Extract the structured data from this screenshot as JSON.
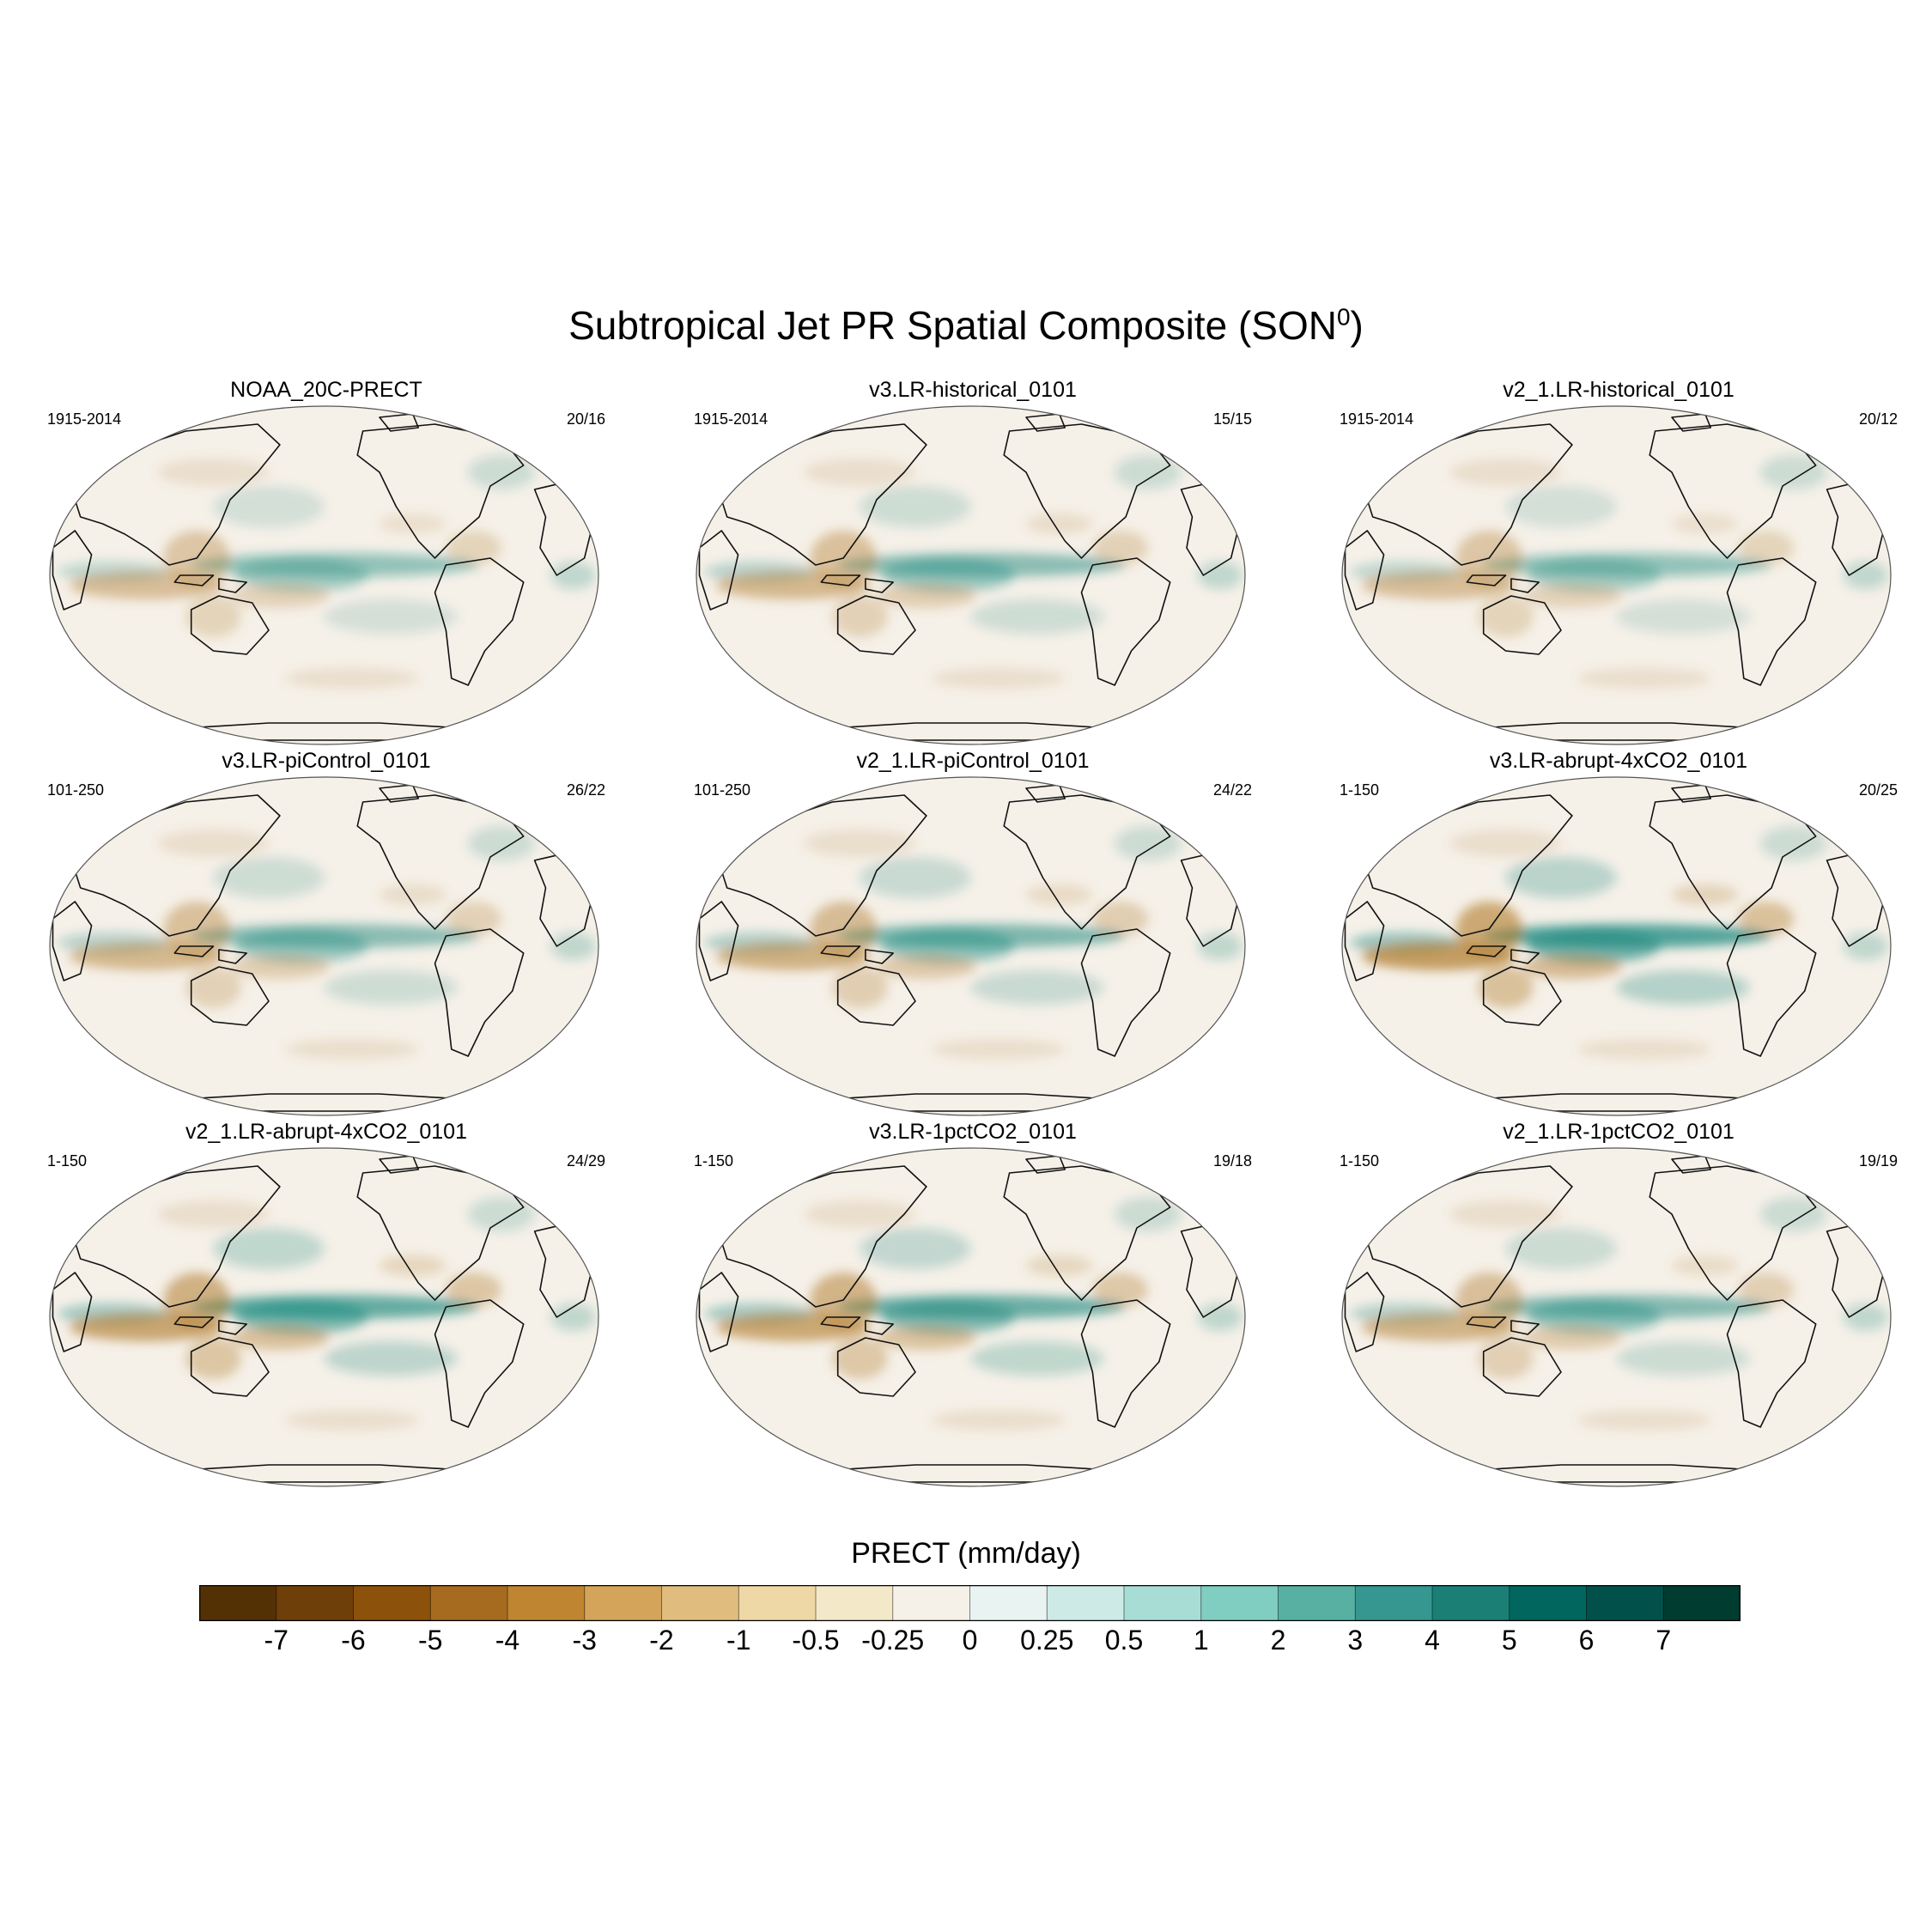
{
  "title": "Subtropical Jet PR Spatial Composite (SON",
  "title_sup": "0",
  "title_close": ")",
  "panels": [
    {
      "name": "NOAA_20C-PRECT",
      "period": "1915-2014",
      "count": "20/16",
      "intensity": 0.45
    },
    {
      "name": "v3.LR-historical_0101",
      "period": "1915-2014",
      "count": "15/15",
      "intensity": 0.55
    },
    {
      "name": "v2_1.LR-historical_0101",
      "period": "1915-2014",
      "count": "20/12",
      "intensity": 0.45
    },
    {
      "name": "v3.LR-piControl_0101",
      "period": "101-250",
      "count": "26/22",
      "intensity": 0.55
    },
    {
      "name": "v2_1.LR-piControl_0101",
      "period": "101-250",
      "count": "24/22",
      "intensity": 0.65
    },
    {
      "name": "v3.LR-abrupt-4xCO2_0101",
      "period": "1-150",
      "count": "20/25",
      "intensity": 1.0
    },
    {
      "name": "v2_1.LR-abrupt-4xCO2_0101",
      "period": "1-150",
      "count": "24/29",
      "intensity": 0.85
    },
    {
      "name": "v3.LR-1pctCO2_0101",
      "period": "1-150",
      "count": "19/18",
      "intensity": 0.8
    },
    {
      "name": "v2_1.LR-1pctCO2_0101",
      "period": "1-150",
      "count": "19/19",
      "intensity": 0.6
    }
  ],
  "colorbar": {
    "title": "PRECT (mm/day)",
    "ticks": [
      "-7",
      "-6",
      "-5",
      "-4",
      "-3",
      "-2",
      "-1",
      "-0.5",
      "-0.25",
      "0",
      "0.25",
      "0.5",
      "1",
      "2",
      "3",
      "4",
      "5",
      "6",
      "7"
    ],
    "colors": [
      "#543005",
      "#6f3f0a",
      "#8c510a",
      "#a66b1f",
      "#bf8530",
      "#d3a45a",
      "#e0bd7f",
      "#eed8a6",
      "#f3e9c8",
      "#f5f0e8",
      "#e9f3f2",
      "#cdeae6",
      "#a8ddd5",
      "#80cdc1",
      "#58b0a3",
      "#35978f",
      "#1b7f76",
      "#01665e",
      "#02504a",
      "#003c30"
    ]
  },
  "pos_color": "#1d8a80",
  "neg_color": "#b07a2a",
  "ocean_color": "#f5f0e8",
  "coast_color": "#111111"
}
